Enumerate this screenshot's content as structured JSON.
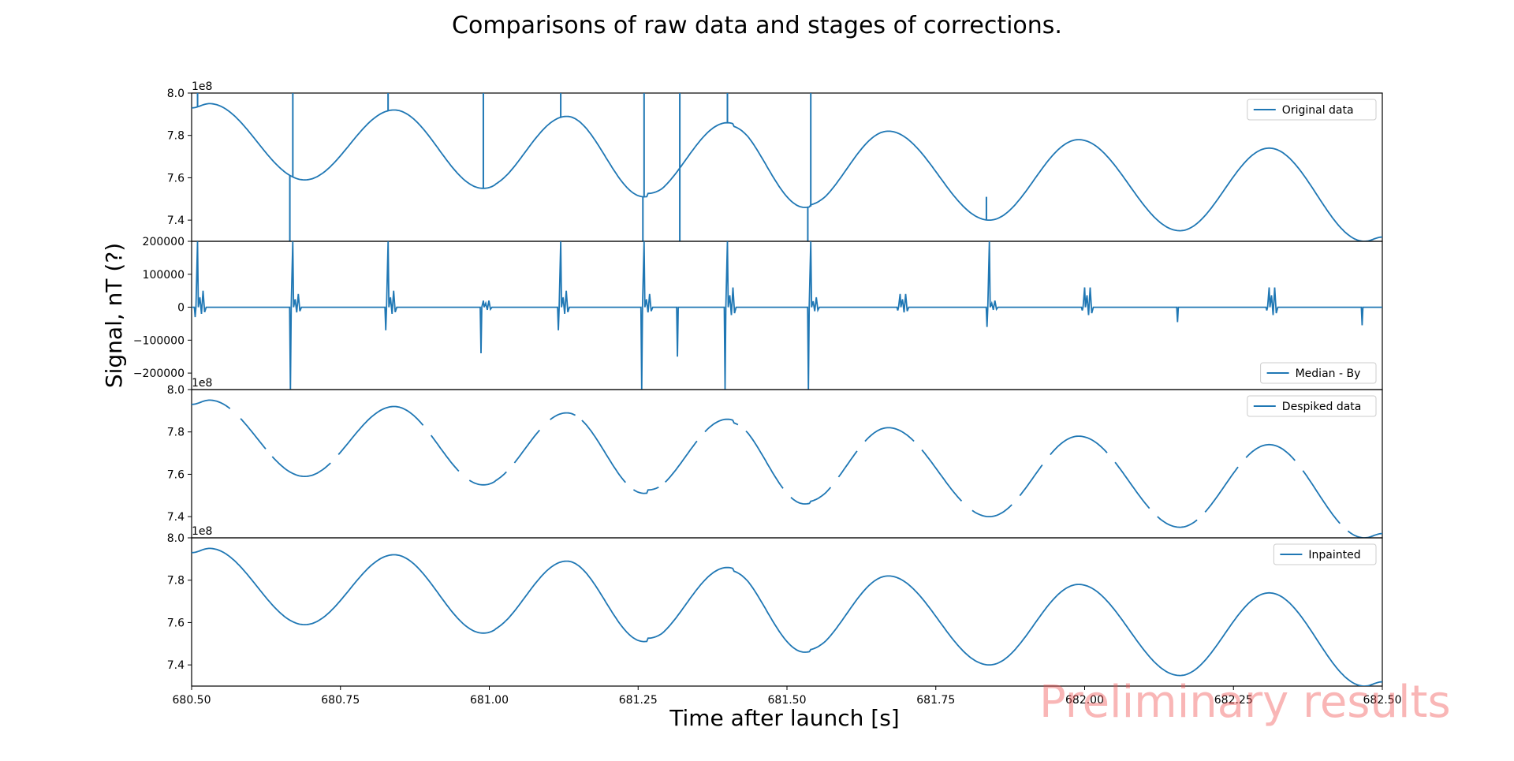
{
  "figure": {
    "title": "Comparisons of raw data and stages of corrections.",
    "xlabel": "Time after launch [s]",
    "ylabel": "Signal, nT (?)",
    "watermark": "Preliminary results",
    "colors": {
      "line": "#1f77b4",
      "axes": "#000000",
      "watermark": "#f4a3a3"
    }
  },
  "chart_data": [
    {
      "type": "line",
      "legend": "Original data",
      "legend_loc": "upper right",
      "xlim": [
        680.5,
        682.5
      ],
      "ylim": [
        7.3,
        8.0
      ],
      "yticks": [
        7.4,
        7.6,
        7.8,
        8.0
      ],
      "ytick_labels": [
        "7.4",
        "7.6",
        "7.8",
        "8.0"
      ],
      "offset_label": "1e8",
      "wave": {
        "peaks": [
          [
            680.53,
            7.95
          ],
          [
            680.84,
            7.92
          ],
          [
            681.13,
            7.89
          ],
          [
            681.4,
            7.86
          ],
          [
            681.67,
            7.82
          ],
          [
            681.99,
            7.78
          ],
          [
            682.31,
            7.74
          ]
        ],
        "troughs": [
          [
            680.69,
            7.59
          ],
          [
            680.99,
            7.55
          ],
          [
            681.26,
            7.51
          ],
          [
            681.53,
            7.46
          ],
          [
            681.84,
            7.4
          ],
          [
            682.16,
            7.35
          ],
          [
            682.47,
            7.3
          ]
        ],
        "start": [
          680.5,
          7.93
        ],
        "end": [
          682.5,
          7.32
        ]
      },
      "steps": [
        [
          681.01,
          7.57
        ],
        [
          681.265,
          7.53
        ],
        [
          681.41,
          7.84
        ],
        [
          681.54,
          7.475
        ]
      ],
      "spikes": [
        [
          680.51,
          8.0
        ],
        [
          680.665,
          7.3
        ],
        [
          680.67,
          8.0
        ],
        [
          680.83,
          8.0
        ],
        [
          680.99,
          8.0
        ],
        [
          681.12,
          8.0
        ],
        [
          681.258,
          7.3
        ],
        [
          681.26,
          8.0
        ],
        [
          681.32,
          8.0
        ],
        [
          681.32,
          7.3
        ],
        [
          681.4,
          8.0
        ],
        [
          681.535,
          7.3
        ],
        [
          681.54,
          8.0
        ],
        [
          681.835,
          7.51
        ]
      ]
    },
    {
      "type": "line",
      "legend": "Median - By",
      "legend_loc": "lower right",
      "xlim": [
        680.5,
        682.5
      ],
      "ylim": [
        -250000,
        200000
      ],
      "yticks": [
        -200000,
        -100000,
        0,
        100000,
        200000
      ],
      "ytick_labels": [
        "−200000",
        "−100000",
        "0",
        "100000",
        "200000"
      ],
      "events": [
        {
          "x": 680.51,
          "pos": 200000,
          "neg": -30000,
          "bump": 50000
        },
        {
          "x": 680.67,
          "pos": 200000,
          "neg": -250000,
          "bump": 40000
        },
        {
          "x": 680.83,
          "pos": 200000,
          "neg": -70000,
          "bump": 50000
        },
        {
          "x": 680.99,
          "pos": 20000,
          "neg": -140000,
          "bump": 20000
        },
        {
          "x": 681.12,
          "pos": 200000,
          "neg": -70000,
          "bump": 50000
        },
        {
          "x": 681.26,
          "pos": 200000,
          "neg": -250000,
          "bump": 40000
        },
        {
          "x": 681.32,
          "pos": 0,
          "neg": -150000,
          "bump": 0
        },
        {
          "x": 681.4,
          "pos": 200000,
          "neg": -250000,
          "bump": 60000
        },
        {
          "x": 681.54,
          "pos": 200000,
          "neg": -250000,
          "bump": 30000
        },
        {
          "x": 681.69,
          "pos": 40000,
          "neg": -10000,
          "bump": 40000
        },
        {
          "x": 681.84,
          "pos": 200000,
          "neg": -60000,
          "bump": 20000
        },
        {
          "x": 682.0,
          "pos": 60000,
          "neg": -10000,
          "bump": 60000
        },
        {
          "x": 682.16,
          "pos": 0,
          "neg": -45000,
          "bump": 0
        },
        {
          "x": 682.31,
          "pos": 60000,
          "neg": -10000,
          "bump": 60000
        },
        {
          "x": 682.47,
          "pos": 0,
          "neg": -55000,
          "bump": 0
        }
      ]
    },
    {
      "type": "line",
      "legend": "Despiked data",
      "legend_loc": "upper right",
      "xlim": [
        680.5,
        682.5
      ],
      "ylim": [
        7.3,
        8.0
      ],
      "yticks": [
        7.4,
        7.6,
        7.8,
        8.0
      ],
      "ytick_labels": [
        "7.4",
        "7.6",
        "7.8",
        "8.0"
      ],
      "offset_label": "1e8",
      "gaps": [
        [
          680.565,
          680.58
        ],
        [
          680.625,
          680.635
        ],
        [
          680.735,
          680.745
        ],
        [
          680.89,
          680.9
        ],
        [
          680.95,
          680.965
        ],
        [
          681.03,
          681.04
        ],
        [
          681.085,
          681.1
        ],
        [
          681.145,
          681.155
        ],
        [
          681.23,
          681.24
        ],
        [
          681.285,
          681.295
        ],
        [
          681.35,
          681.36
        ],
        [
          681.42,
          681.43
        ],
        [
          681.495,
          681.505
        ],
        [
          681.575,
          681.585
        ],
        [
          681.62,
          681.63
        ],
        [
          681.715,
          681.725
        ],
        [
          681.795,
          681.81
        ],
        [
          681.88,
          681.89
        ],
        [
          681.93,
          681.94
        ],
        [
          682.04,
          682.05
        ],
        [
          682.11,
          682.12
        ],
        [
          682.19,
          682.2
        ],
        [
          682.26,
          682.27
        ],
        [
          682.355,
          682.365
        ],
        [
          682.43,
          682.44
        ]
      ]
    },
    {
      "type": "line",
      "legend": "Inpainted",
      "legend_loc": "upper right",
      "xlim": [
        680.5,
        682.5
      ],
      "ylim": [
        7.3,
        8.0
      ],
      "yticks": [
        7.4,
        7.6,
        7.8,
        8.0
      ],
      "ytick_labels": [
        "7.4",
        "7.6",
        "7.8",
        "8.0"
      ],
      "offset_label": "1e8",
      "xticks": [
        680.5,
        680.75,
        681.0,
        681.25,
        681.5,
        681.75,
        682.0,
        682.25,
        682.5
      ],
      "xtick_labels": [
        "680.50",
        "680.75",
        "681.00",
        "681.25",
        "681.50",
        "681.75",
        "682.00",
        "682.25",
        "682.50"
      ]
    }
  ]
}
